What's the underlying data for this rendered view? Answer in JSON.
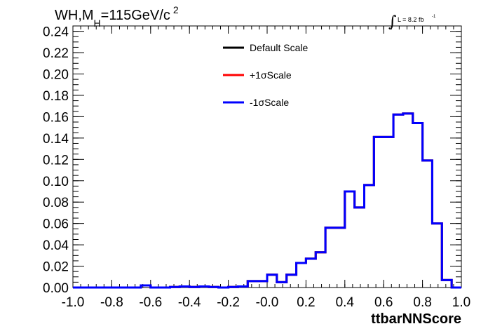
{
  "title": {
    "main": "WH,M",
    "subscript": "H",
    "rest": "=115GeV/c",
    "superscript": "2"
  },
  "lumi": {
    "integral_symbol": "∫",
    "text": "L = 8.2 fb",
    "superscript": "-1"
  },
  "chart_data": {
    "type": "line",
    "xlabel": "ttbarNNScore",
    "ylabel": "",
    "xlim": [
      -1.0,
      1.0
    ],
    "ylim": [
      0.0,
      0.245
    ],
    "x_ticks": [
      "-1.0",
      "-0.8",
      "-0.6",
      "-0.4",
      "-0.2",
      "-0.0",
      "0.2",
      "0.4",
      "0.6",
      "0.8",
      "1.0"
    ],
    "y_ticks": [
      "0.00",
      "0.02",
      "0.04",
      "0.06",
      "0.08",
      "0.10",
      "0.12",
      "0.14",
      "0.16",
      "0.18",
      "0.20",
      "0.22",
      "0.24"
    ],
    "legend_position": "top-center",
    "bin_edges": [
      -1.0,
      -0.95,
      -0.9,
      -0.85,
      -0.8,
      -0.75,
      -0.7,
      -0.65,
      -0.6,
      -0.55,
      -0.5,
      -0.45,
      -0.4,
      -0.35,
      -0.3,
      -0.25,
      -0.2,
      -0.15,
      -0.1,
      -0.05,
      0.0,
      0.05,
      0.1,
      0.15,
      0.2,
      0.25,
      0.3,
      0.35,
      0.4,
      0.45,
      0.5,
      0.55,
      0.6,
      0.65,
      0.7,
      0.75,
      0.8,
      0.85,
      0.9,
      0.95,
      1.0
    ],
    "series": [
      {
        "name": "Default Scale",
        "color": "#000000",
        "values": [
          0.0,
          0.0,
          0.0,
          0.0,
          0.0,
          0.0,
          0.0,
          0.002,
          0.0,
          0.0,
          0.0005,
          0.001,
          0.0005,
          0.001,
          0.0005,
          0.0,
          0.0005,
          0.001,
          0.006,
          0.006,
          0.012,
          0.005,
          0.012,
          0.023,
          0.027,
          0.033,
          0.056,
          0.056,
          0.09,
          0.075,
          0.096,
          0.141,
          0.141,
          0.162,
          0.163,
          0.154,
          0.119,
          0.06,
          0.007,
          0.0
        ]
      },
      {
        "name": "+1σScale",
        "color": "#ff0000",
        "values": [
          0.0,
          0.0,
          0.0,
          0.0,
          0.0,
          0.0,
          0.0,
          0.002,
          0.0,
          0.0,
          0.0005,
          0.001,
          0.0005,
          0.001,
          0.0005,
          0.0,
          0.0005,
          0.001,
          0.006,
          0.006,
          0.012,
          0.005,
          0.012,
          0.023,
          0.027,
          0.033,
          0.056,
          0.056,
          0.09,
          0.075,
          0.096,
          0.141,
          0.141,
          0.162,
          0.163,
          0.154,
          0.119,
          0.06,
          0.007,
          0.0
        ]
      },
      {
        "name": "-1σScale",
        "color": "#0000ff",
        "values": [
          0.0,
          0.0,
          0.0,
          0.0,
          0.0,
          0.0,
          0.0,
          0.002,
          0.0,
          0.0,
          0.0005,
          0.001,
          0.0005,
          0.001,
          0.0005,
          0.0,
          0.0005,
          0.001,
          0.006,
          0.006,
          0.012,
          0.005,
          0.012,
          0.023,
          0.027,
          0.033,
          0.056,
          0.056,
          0.09,
          0.075,
          0.096,
          0.141,
          0.141,
          0.162,
          0.163,
          0.154,
          0.119,
          0.06,
          0.007,
          0.0
        ]
      }
    ]
  }
}
